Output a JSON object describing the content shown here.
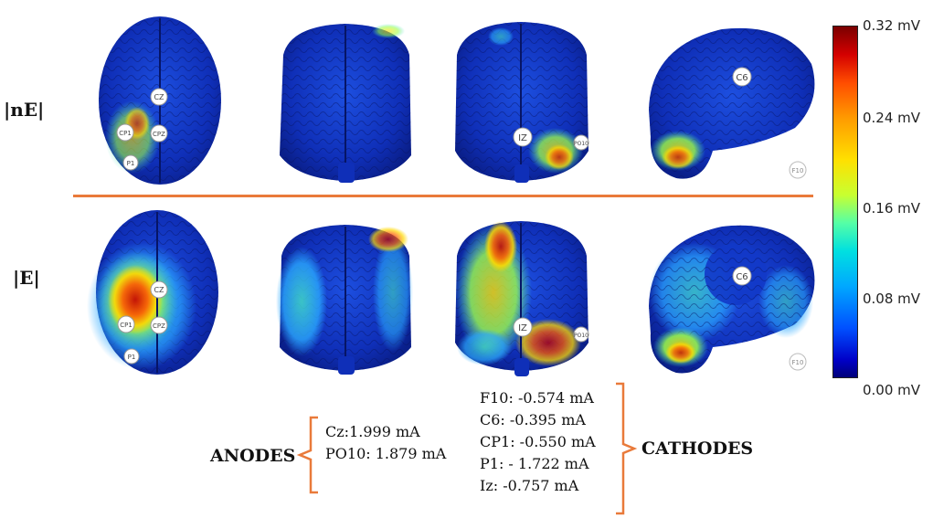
{
  "rows": {
    "top_label": "|nE|",
    "bottom_label": "|E|"
  },
  "colorbar": {
    "ticks": [
      "0.32 mV",
      "0.24 mV",
      "0.16 mV",
      "0.08 mV",
      "0.00 mV"
    ],
    "colors": [
      "#7a0000",
      "#d40000",
      "#ff9a00",
      "#ffe000",
      "#55ffa6",
      "#00a8ff",
      "#0000c8",
      "#00007a"
    ]
  },
  "electrode_labels": {
    "cz": "CZ",
    "cpz": "CPZ",
    "cp1": "CP1",
    "p1": "P1",
    "iz": "IZ",
    "po10": "PO10",
    "c6": "C6",
    "f10": "F10"
  },
  "anodes": {
    "title": "ANODES",
    "items": [
      "Cz:1.999 mA",
      "PO10: 1.879 mA"
    ]
  },
  "cathodes": {
    "title": "CATHODES",
    "items": [
      "F10: -0.574 mA",
      "C6: -0.395 mA",
      "CP1: -0.550 mA",
      "P1: - 1.722 mA",
      "Iz: -0.757 mA"
    ]
  }
}
